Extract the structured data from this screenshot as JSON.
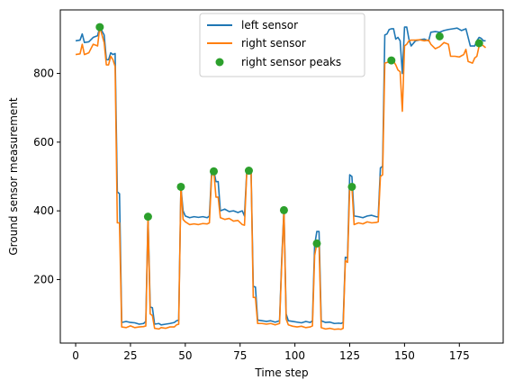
{
  "chart_data": {
    "type": "line",
    "title": "",
    "xlabel": "Time step",
    "ylabel": "Ground sensor measurement",
    "xlim": [
      -7,
      195
    ],
    "ylim": [
      15,
      985
    ],
    "xticks": [
      0,
      25,
      50,
      75,
      100,
      125,
      150,
      175
    ],
    "yticks": [
      200,
      400,
      600,
      800
    ],
    "grid": false,
    "legend_position": "upper-center",
    "series": [
      {
        "name": "left sensor",
        "color": "#1f77b4",
        "kind": "line",
        "points": [
          [
            0,
            895
          ],
          [
            2,
            897
          ],
          [
            3,
            915
          ],
          [
            4,
            890
          ],
          [
            6,
            892
          ],
          [
            8,
            905
          ],
          [
            10,
            910
          ],
          [
            11,
            935
          ],
          [
            13,
            912
          ],
          [
            14,
            840
          ],
          [
            15,
            840
          ],
          [
            16,
            860
          ],
          [
            17,
            855
          ],
          [
            18,
            858
          ],
          [
            19,
            455
          ],
          [
            20,
            450
          ],
          [
            21,
            75
          ],
          [
            23,
            78
          ],
          [
            25,
            75
          ],
          [
            27,
            74
          ],
          [
            29,
            70
          ],
          [
            31,
            72
          ],
          [
            32,
            78
          ],
          [
            33,
            385
          ],
          [
            34,
            120
          ],
          [
            35,
            118
          ],
          [
            36,
            70
          ],
          [
            38,
            72
          ],
          [
            39,
            68
          ],
          [
            41,
            70
          ],
          [
            43,
            72
          ],
          [
            45,
            75
          ],
          [
            46,
            80
          ],
          [
            47,
            82
          ],
          [
            48,
            470
          ],
          [
            49,
            400
          ],
          [
            50,
            385
          ],
          [
            52,
            380
          ],
          [
            54,
            383
          ],
          [
            56,
            381
          ],
          [
            58,
            383
          ],
          [
            60,
            380
          ],
          [
            61,
            385
          ],
          [
            62,
            510
          ],
          [
            63,
            518
          ],
          [
            64,
            485
          ],
          [
            65,
            485
          ],
          [
            66,
            400
          ],
          [
            68,
            405
          ],
          [
            70,
            398
          ],
          [
            72,
            400
          ],
          [
            74,
            395
          ],
          [
            76,
            400
          ],
          [
            77,
            385
          ],
          [
            78,
            510
          ],
          [
            79,
            517
          ],
          [
            80,
            520
          ],
          [
            81,
            180
          ],
          [
            82,
            178
          ],
          [
            83,
            82
          ],
          [
            85,
            80
          ],
          [
            87,
            78
          ],
          [
            89,
            80
          ],
          [
            91,
            76
          ],
          [
            92,
            78
          ],
          [
            93,
            80
          ],
          [
            94,
            260
          ],
          [
            95,
            405
          ],
          [
            96,
            100
          ],
          [
            97,
            80
          ],
          [
            99,
            78
          ],
          [
            101,
            76
          ],
          [
            103,
            74
          ],
          [
            105,
            78
          ],
          [
            107,
            75
          ],
          [
            108,
            80
          ],
          [
            109,
            300
          ],
          [
            110,
            340
          ],
          [
            111,
            340
          ],
          [
            112,
            80
          ],
          [
            114,
            75
          ],
          [
            116,
            76
          ],
          [
            118,
            72
          ],
          [
            120,
            73
          ],
          [
            121,
            72
          ],
          [
            122,
            75
          ],
          [
            123,
            265
          ],
          [
            124,
            263
          ],
          [
            125,
            505
          ],
          [
            126,
            500
          ],
          [
            127,
            385
          ],
          [
            129,
            383
          ],
          [
            131,
            380
          ],
          [
            133,
            385
          ],
          [
            135,
            387
          ],
          [
            137,
            383
          ],
          [
            138,
            382
          ],
          [
            139,
            525
          ],
          [
            140,
            530
          ],
          [
            141,
            912
          ],
          [
            142,
            915
          ],
          [
            143,
            928
          ],
          [
            144,
            930
          ],
          [
            145,
            930
          ],
          [
            146,
            900
          ],
          [
            147,
            905
          ],
          [
            148,
            895
          ],
          [
            149,
            800
          ],
          [
            150,
            935
          ],
          [
            151,
            935
          ],
          [
            152,
            900
          ],
          [
            153,
            880
          ],
          [
            155,
            895
          ],
          [
            157,
            898
          ],
          [
            159,
            900
          ],
          [
            161,
            895
          ],
          [
            162,
            920
          ],
          [
            164,
            922
          ],
          [
            166,
            920
          ],
          [
            168,
            925
          ],
          [
            170,
            928
          ],
          [
            172,
            930
          ],
          [
            174,
            932
          ],
          [
            176,
            925
          ],
          [
            178,
            930
          ],
          [
            180,
            880
          ],
          [
            182,
            880
          ],
          [
            183,
            895
          ],
          [
            184,
            905
          ],
          [
            185,
            902
          ],
          [
            186,
            895
          ],
          [
            187,
            895
          ]
        ]
      },
      {
        "name": "right sensor",
        "color": "#ff7f0e",
        "kind": "line",
        "points": [
          [
            0,
            855
          ],
          [
            2,
            857
          ],
          [
            3,
            885
          ],
          [
            4,
            855
          ],
          [
            6,
            860
          ],
          [
            8,
            885
          ],
          [
            10,
            880
          ],
          [
            11,
            935
          ],
          [
            13,
            890
          ],
          [
            14,
            825
          ],
          [
            15,
            825
          ],
          [
            16,
            850
          ],
          [
            17,
            840
          ],
          [
            18,
            820
          ],
          [
            19,
            365
          ],
          [
            20,
            365
          ],
          [
            21,
            62
          ],
          [
            23,
            60
          ],
          [
            25,
            65
          ],
          [
            27,
            60
          ],
          [
            29,
            62
          ],
          [
            31,
            63
          ],
          [
            32,
            65
          ],
          [
            33,
            380
          ],
          [
            34,
            100
          ],
          [
            35,
            95
          ],
          [
            36,
            58
          ],
          [
            38,
            56
          ],
          [
            39,
            60
          ],
          [
            41,
            58
          ],
          [
            43,
            62
          ],
          [
            45,
            62
          ],
          [
            46,
            68
          ],
          [
            47,
            70
          ],
          [
            48,
            470
          ],
          [
            49,
            375
          ],
          [
            50,
            368
          ],
          [
            52,
            360
          ],
          [
            54,
            362
          ],
          [
            56,
            360
          ],
          [
            58,
            363
          ],
          [
            60,
            362
          ],
          [
            61,
            365
          ],
          [
            62,
            500
          ],
          [
            63,
            515
          ],
          [
            64,
            440
          ],
          [
            65,
            440
          ],
          [
            66,
            380
          ],
          [
            68,
            375
          ],
          [
            70,
            378
          ],
          [
            72,
            370
          ],
          [
            74,
            372
          ],
          [
            76,
            360
          ],
          [
            77,
            358
          ],
          [
            78,
            505
          ],
          [
            79,
            515
          ],
          [
            80,
            518
          ],
          [
            81,
            148
          ],
          [
            82,
            148
          ],
          [
            83,
            72
          ],
          [
            85,
            72
          ],
          [
            87,
            70
          ],
          [
            89,
            72
          ],
          [
            91,
            68
          ],
          [
            92,
            70
          ],
          [
            93,
            72
          ],
          [
            94,
            248
          ],
          [
            95,
            402
          ],
          [
            96,
            85
          ],
          [
            97,
            68
          ],
          [
            99,
            64
          ],
          [
            101,
            62
          ],
          [
            103,
            64
          ],
          [
            105,
            60
          ],
          [
            107,
            62
          ],
          [
            108,
            65
          ],
          [
            109,
            270
          ],
          [
            110,
            305
          ],
          [
            111,
            305
          ],
          [
            112,
            60
          ],
          [
            114,
            56
          ],
          [
            116,
            58
          ],
          [
            118,
            55
          ],
          [
            120,
            56
          ],
          [
            121,
            55
          ],
          [
            122,
            58
          ],
          [
            123,
            255
          ],
          [
            124,
            250
          ],
          [
            125,
            470
          ],
          [
            126,
            470
          ],
          [
            127,
            360
          ],
          [
            129,
            365
          ],
          [
            131,
            362
          ],
          [
            133,
            368
          ],
          [
            135,
            365
          ],
          [
            137,
            366
          ],
          [
            138,
            368
          ],
          [
            139,
            500
          ],
          [
            140,
            505
          ],
          [
            141,
            830
          ],
          [
            142,
            832
          ],
          [
            143,
            835
          ],
          [
            144,
            838
          ],
          [
            145,
            835
          ],
          [
            146,
            825
          ],
          [
            147,
            810
          ],
          [
            148,
            805
          ],
          [
            149,
            690
          ],
          [
            150,
            880
          ],
          [
            151,
            885
          ],
          [
            152,
            895
          ],
          [
            153,
            897
          ],
          [
            155,
            897
          ],
          [
            157,
            898
          ],
          [
            159,
            895
          ],
          [
            161,
            897
          ],
          [
            162,
            885
          ],
          [
            164,
            872
          ],
          [
            166,
            878
          ],
          [
            168,
            890
          ],
          [
            170,
            885
          ],
          [
            171,
            850
          ],
          [
            173,
            850
          ],
          [
            175,
            848
          ],
          [
            177,
            855
          ],
          [
            178,
            870
          ],
          [
            179,
            835
          ],
          [
            181,
            830
          ],
          [
            182,
            845
          ],
          [
            183,
            850
          ],
          [
            184,
            880
          ],
          [
            185,
            885
          ],
          [
            186,
            880
          ],
          [
            187,
            875
          ]
        ]
      },
      {
        "name": "right sensor peaks",
        "color": "#2ca02c",
        "kind": "scatter",
        "points": [
          [
            11,
            935
          ],
          [
            33,
            383
          ],
          [
            48,
            470
          ],
          [
            63,
            515
          ],
          [
            79,
            517
          ],
          [
            95,
            402
          ],
          [
            110,
            305
          ],
          [
            126,
            470
          ],
          [
            144,
            838
          ],
          [
            166,
            908
          ],
          [
            184,
            888
          ]
        ]
      }
    ]
  }
}
